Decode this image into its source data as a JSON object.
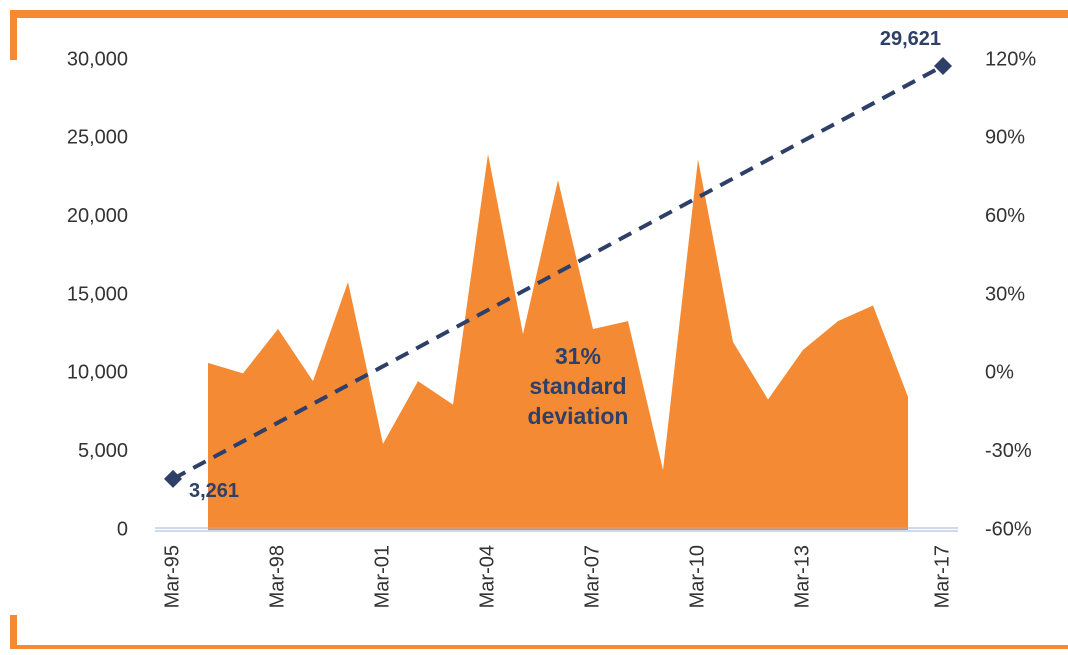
{
  "chart_data": {
    "type": "area",
    "categories": [
      "Mar-95",
      null,
      null,
      "Mar-98",
      null,
      null,
      "Mar-01",
      null,
      null,
      "Mar-04",
      null,
      null,
      "Mar-07",
      null,
      null,
      "Mar-10",
      null,
      null,
      "Mar-13",
      null,
      null,
      null,
      "Mar-17"
    ],
    "series": [
      {
        "type": "area",
        "axis": "y2",
        "color": "#F58A35",
        "values": [
          null,
          4,
          0,
          17,
          -3,
          35,
          -27,
          -3,
          -12,
          84,
          15,
          74,
          17,
          20,
          -37,
          82,
          12,
          -10,
          9,
          20,
          26,
          -9,
          null
        ]
      },
      {
        "type": "line",
        "color": "#2E4068",
        "dashed": true,
        "marker": "diamond",
        "x": [
          "Mar-95",
          "Mar-17"
        ],
        "values": [
          3261,
          29621
        ],
        "value_labels": [
          "3,261",
          "29,621"
        ]
      }
    ],
    "ylim": [
      0,
      30000
    ],
    "yticks": [
      {
        "value": 0,
        "label": "0"
      },
      {
        "value": 5000,
        "label": "5,000"
      },
      {
        "value": 10000,
        "label": "10,000"
      },
      {
        "value": 15000,
        "label": "15,000"
      },
      {
        "value": 20000,
        "label": "20,000"
      },
      {
        "value": 25000,
        "label": "25,000"
      },
      {
        "value": 30000,
        "label": "30,000"
      }
    ],
    "y2lim": [
      -60,
      120
    ],
    "y2ticks": [
      {
        "value": -60,
        "label": "-60%"
      },
      {
        "value": -30,
        "label": "-30%"
      },
      {
        "value": 0,
        "label": "0%"
      },
      {
        "value": 30,
        "label": "30%"
      },
      {
        "value": 60,
        "label": "60%"
      },
      {
        "value": 90,
        "label": "90%"
      },
      {
        "value": 120,
        "label": "120%"
      }
    ],
    "annotation": [
      "31%",
      "standard",
      "deviation"
    ],
    "grid": false
  }
}
